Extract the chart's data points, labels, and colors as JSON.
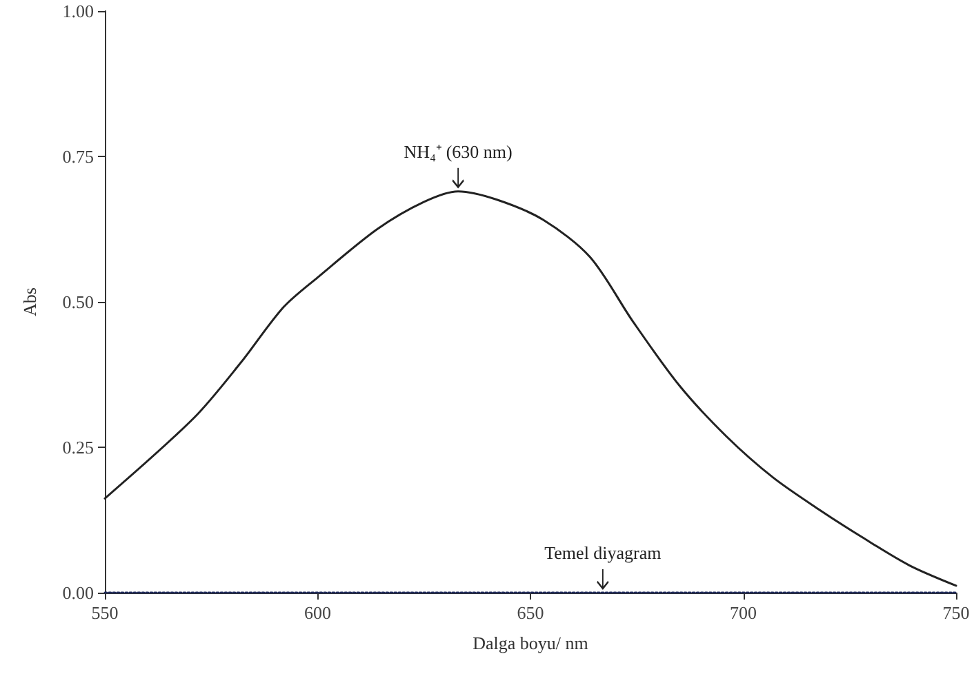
{
  "chart_data": {
    "type": "line",
    "xlabel": "Dalga boyu/ nm",
    "ylabel": "Abs",
    "xlim": [
      550,
      750
    ],
    "xticks": [
      550,
      600,
      650,
      700,
      750
    ],
    "ylim": [
      0,
      1
    ],
    "yticks": [
      {
        "value": 0,
        "label": "0.00"
      },
      {
        "value": 0.25,
        "label": "0.25"
      },
      {
        "value": 0.5,
        "label": "0.50"
      },
      {
        "value": 0.75,
        "label": "0.75"
      },
      {
        "value": 1,
        "label": "1.00"
      }
    ],
    "grid": false,
    "marker": "none",
    "series": [
      {
        "color": "#222222",
        "line_style": "solid",
        "x": [
          550,
          571,
          582,
          592,
          600,
          614,
          625,
          633,
          642,
          653,
          664,
          674,
          685,
          696,
          707,
          718,
          728,
          739,
          750
        ],
        "values": [
          0.162,
          0.301,
          0.396,
          0.491,
          0.542,
          0.625,
          0.672,
          0.69,
          0.676,
          0.641,
          0.577,
          0.467,
          0.356,
          0.269,
          0.198,
          0.142,
          0.095,
          0.047,
          0.012
        ]
      },
      {
        "color": "#1f2a5a",
        "line_style": "dotted",
        "x": [
          550,
          750
        ],
        "values": [
          0,
          0
        ]
      }
    ],
    "annotations": [
      {
        "text": "NH₄⁺ (630 nm)",
        "x": 633,
        "y": 0.69
      },
      {
        "text": "Temel diyagram",
        "x": 667,
        "y": 0
      }
    ]
  }
}
